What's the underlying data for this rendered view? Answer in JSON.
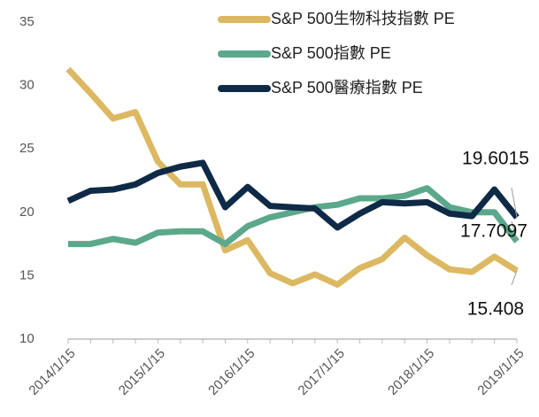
{
  "chart_data": {
    "type": "line",
    "categories": [
      "2014/1/15",
      null,
      null,
      null,
      "2015/1/15",
      null,
      null,
      null,
      "2016/1/15",
      null,
      null,
      null,
      "2017/1/15",
      null,
      null,
      null,
      "2018/1/15",
      null,
      null,
      null,
      "2019/1/15"
    ],
    "series": [
      {
        "name": "S&P 500生物科技指數 PE",
        "color": "#dcb862",
        "values": [
          31.3,
          29.4,
          27.4,
          27.9,
          24.0,
          22.2,
          22.2,
          17.0,
          17.8,
          15.2,
          14.4,
          15.1,
          14.3,
          15.6,
          16.3,
          18.0,
          16.6,
          15.5,
          15.3,
          16.5,
          15.408
        ]
      },
      {
        "name": "S&P 500指數 PE",
        "color": "#5ba88a",
        "values": [
          17.5,
          17.5,
          17.9,
          17.6,
          18.4,
          18.5,
          18.5,
          17.5,
          18.9,
          19.6,
          20.0,
          20.4,
          20.6,
          21.1,
          21.1,
          21.3,
          21.9,
          20.4,
          20.0,
          20.0,
          17.7097
        ]
      },
      {
        "name": "S&P 500醫療指數 PE",
        "color": "#0f2a47",
        "values": [
          20.9,
          21.7,
          21.8,
          22.2,
          23.1,
          23.6,
          23.9,
          20.4,
          22.0,
          20.5,
          20.4,
          20.3,
          18.8,
          19.9,
          20.8,
          20.7,
          20.8,
          19.9,
          19.7,
          21.8,
          19.6015
        ]
      }
    ],
    "ylim": [
      10,
      35
    ],
    "yticks": [
      10,
      15,
      20,
      25,
      30,
      35
    ],
    "grid": false,
    "legend": "upper-right"
  }
}
